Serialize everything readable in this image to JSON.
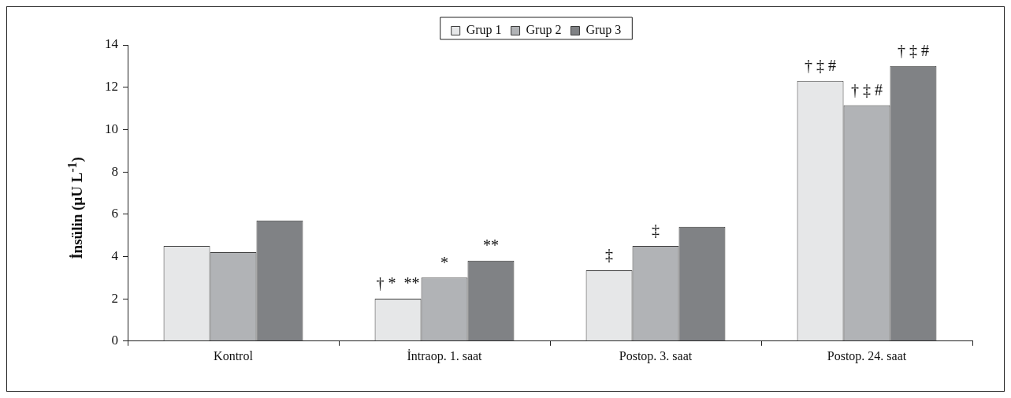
{
  "chart_data": {
    "type": "bar",
    "categories": [
      "Kontrol",
      "İntraop. 1. saat",
      "Postop. 3. saat",
      "Postop. 24. saat"
    ],
    "series": [
      {
        "name": "Grup 1",
        "color": "#e6e7e8",
        "values": [
          4.5,
          2.0,
          3.35,
          12.3
        ]
      },
      {
        "name": "Grup 2",
        "color": "#b1b3b6",
        "values": [
          4.2,
          3.0,
          4.5,
          11.15
        ]
      },
      {
        "name": "Grup 3",
        "color": "#808285",
        "values": [
          5.7,
          3.8,
          5.4,
          13.0
        ]
      }
    ],
    "ylabel": "İnsülin (μU L$^{-1}$)",
    "ylim": [
      0,
      14
    ],
    "yticks": [
      0,
      2,
      4,
      6,
      8,
      10,
      12,
      14
    ],
    "legend": "top",
    "annotations": [
      "† *  **",
      "*",
      "**",
      "‡",
      "‡",
      "† ‡ #",
      "† ‡ #",
      "† ‡ #"
    ]
  }
}
